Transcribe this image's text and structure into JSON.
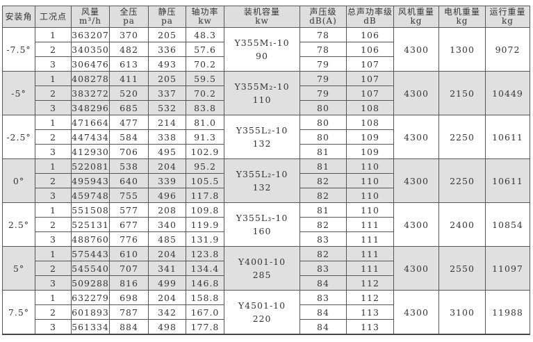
{
  "headers": [
    {
      "name": "安装角",
      "unit": ""
    },
    {
      "name": "工况点",
      "unit": ""
    },
    {
      "name": "风量",
      "unit": "m³/h"
    },
    {
      "name": "全压",
      "unit": "pa"
    },
    {
      "name": "静压",
      "unit": "pa"
    },
    {
      "name": "轴功率",
      "unit": "kw"
    },
    {
      "name": "装机容量",
      "unit": "kw"
    },
    {
      "name": "声压级",
      "unit": "dB(A)"
    },
    {
      "name": "总声功率级",
      "unit": "dB"
    },
    {
      "name": "风机重量",
      "unit": "kg"
    },
    {
      "name": "电机重量",
      "unit": "kg"
    },
    {
      "name": "运行重量",
      "unit": "kg"
    }
  ],
  "groups": [
    {
      "angle": "-7.5°",
      "motor": "Y355M₁-10",
      "power": "90",
      "fan_weight": "4300",
      "motor_weight": "1300",
      "run_weight": "9072",
      "shaded": false,
      "rows": [
        [
          "1",
          "363207",
          "370",
          "205",
          "48.3",
          "78",
          "106"
        ],
        [
          "2",
          "340350",
          "482",
          "336",
          "57.6",
          "78",
          "106"
        ],
        [
          "3",
          "306476",
          "613",
          "493",
          "70.2",
          "79",
          "107"
        ]
      ]
    },
    {
      "angle": "-5°",
      "motor": "Y355M₂-10",
      "power": "110",
      "fan_weight": "4300",
      "motor_weight": "2150",
      "run_weight": "10449",
      "shaded": true,
      "rows": [
        [
          "1",
          "408278",
          "411",
          "205",
          "59.5",
          "79",
          "107"
        ],
        [
          "2",
          "383272",
          "520",
          "337",
          "70.2",
          "79",
          "107"
        ],
        [
          "3",
          "348296",
          "685",
          "532",
          "83.8",
          "80",
          "108"
        ]
      ]
    },
    {
      "angle": "-2.5°",
      "motor": "Y355L₂-10",
      "power": "132",
      "fan_weight": "4300",
      "motor_weight": "2250",
      "run_weight": "10611",
      "shaded": false,
      "rows": [
        [
          "1",
          "471664",
          "477",
          "214",
          "81.0",
          "80",
          "108"
        ],
        [
          "2",
          "447434",
          "584",
          "338",
          "91.3",
          "80",
          "109"
        ],
        [
          "3",
          "412930",
          "706",
          "495",
          "102.9",
          "81",
          "109"
        ]
      ]
    },
    {
      "angle": "0°",
      "motor": "Y355L₂-10",
      "power": "132",
      "fan_weight": "4300",
      "motor_weight": "2250",
      "run_weight": "10611",
      "shaded": true,
      "rows": [
        [
          "1",
          "522081",
          "538",
          "204",
          "95.2",
          "81",
          "110"
        ],
        [
          "2",
          "495943",
          "640",
          "339",
          "105.5",
          "82",
          "110"
        ],
        [
          "3",
          "459748",
          "755",
          "496",
          "117.8",
          "82",
          "110"
        ]
      ]
    },
    {
      "angle": "2.5°",
      "motor": "Y355L₃-10",
      "power": "160",
      "fan_weight": "4300",
      "motor_weight": "2400",
      "run_weight": "10854",
      "shaded": false,
      "rows": [
        [
          "1",
          "551508",
          "577",
          "208",
          "109.8",
          "81",
          "110"
        ],
        [
          "2",
          "525131",
          "677",
          "340",
          "119.9",
          "82",
          "111"
        ],
        [
          "3",
          "488760",
          "776",
          "485",
          "131.9",
          "83",
          "111"
        ]
      ]
    },
    {
      "angle": "5°",
      "motor": "Y4001-10",
      "power": "285",
      "fan_weight": "4300",
      "motor_weight": "2550",
      "run_weight": "11097",
      "shaded": true,
      "rows": [
        [
          "1",
          "575443",
          "610",
          "204",
          "123.8",
          "82",
          "111"
        ],
        [
          "2",
          "545540",
          "707",
          "341",
          "134.4",
          "83",
          "111"
        ],
        [
          "3",
          "509288",
          "816",
          "499",
          "146.8",
          "84",
          "112"
        ]
      ]
    },
    {
      "angle": "7.5°",
      "motor": "Y4501-10",
      "power": "220",
      "fan_weight": "4300",
      "motor_weight": "3100",
      "run_weight": "11988",
      "shaded": false,
      "rows": [
        [
          "1",
          "632279",
          "698",
          "204",
          "158.8",
          "83",
          "112"
        ],
        [
          "2",
          "601893",
          "787",
          "342",
          "167.0",
          "84",
          "113"
        ],
        [
          "3",
          "561334",
          "884",
          "498",
          "177.8",
          "84",
          "113"
        ]
      ]
    }
  ]
}
